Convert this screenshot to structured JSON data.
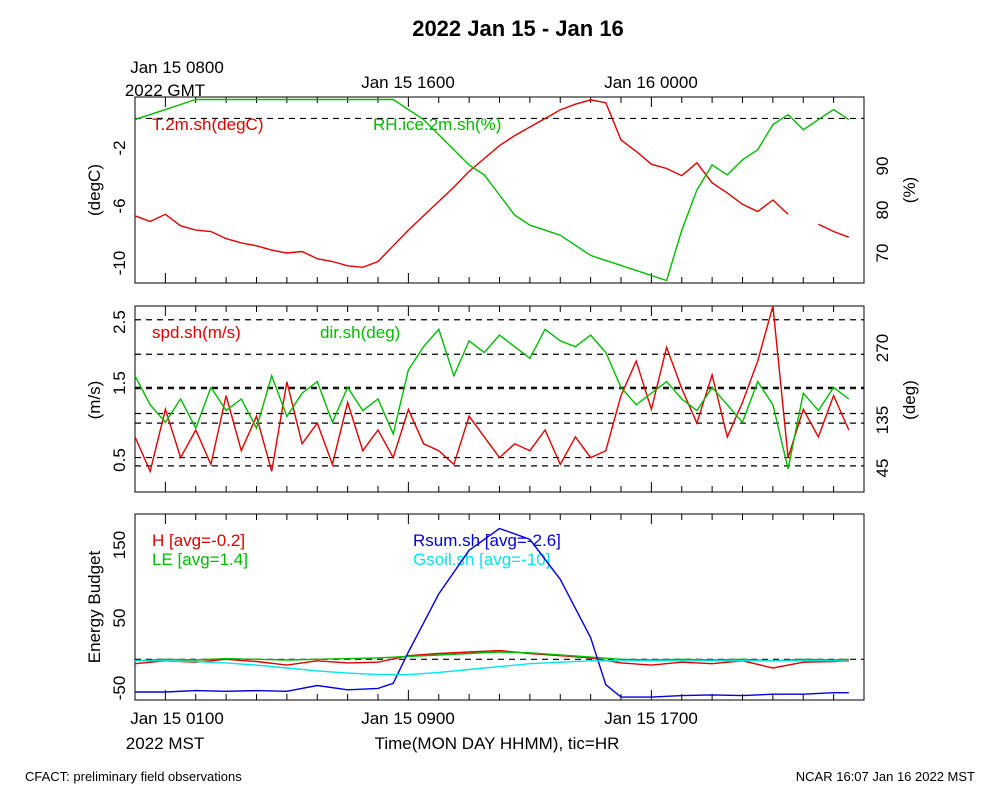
{
  "chart_data": [
    {
      "type": "line",
      "title": "2022 Jan 15 - Jan 16",
      "top_axis": {
        "tick_labels": [
          "Jan 15 0800",
          "Jan 15 1600",
          "Jan 16 0000"
        ],
        "tz_label": "2022 GMT"
      },
      "ylabel_left": "(degC)",
      "ylabel_right": "(%)",
      "yticks_left": [
        "-2",
        "-6",
        "-10"
      ],
      "yticks_right": [
        "90",
        "80",
        "70"
      ],
      "ylim_left": [
        -11.5,
        1.5
      ],
      "ylim_right": [
        63.5,
        100.5
      ],
      "series": [
        {
          "name": "T.2m.sh(degC)",
          "color": "#e00000",
          "axis": "left",
          "x": [
            0,
            0.5,
            1,
            1.5,
            2,
            2.5,
            3,
            3.5,
            4,
            4.5,
            5,
            5.5,
            6,
            6.5,
            7,
            7.5,
            8,
            8.5,
            9,
            9.5,
            10,
            10.5,
            11,
            11.5,
            12,
            12.5,
            13,
            13.5,
            14,
            14.5,
            15,
            15.5,
            16,
            16.5,
            17,
            17.5,
            18,
            18.5,
            19,
            19.5,
            20,
            20.5,
            21,
            21.5,
            22,
            22.5,
            23,
            23.5
          ],
          "y": [
            -6.8,
            -7.2,
            -6.7,
            -7.5,
            -7.8,
            -7.9,
            -8.4,
            -8.7,
            -8.9,
            -9.2,
            -9.4,
            -9.3,
            -9.8,
            -10.0,
            -10.3,
            -10.4,
            -10.0,
            -8.9,
            -7.8,
            -6.8,
            -5.8,
            -4.8,
            -3.7,
            -2.8,
            -1.9,
            -1.2,
            -0.6,
            0.0,
            0.6,
            1.0,
            1.3,
            1.1,
            -1.5,
            -2.3,
            -3.2,
            -3.5,
            -4.0,
            -3.1,
            -4.5,
            -5.2,
            -6.0,
            -6.5,
            -5.7,
            -6.7,
            null,
            -7.4,
            -7.9,
            -8.3
          ]
        },
        {
          "name": "RH.ice.2m.sh(%)",
          "color": "#00bb00",
          "axis": "right",
          "x": [
            0,
            0.5,
            1,
            1.5,
            2,
            2.5,
            3,
            3.5,
            4,
            4.5,
            5,
            5.5,
            6,
            6.5,
            7,
            7.5,
            8,
            8.5,
            9,
            9.5,
            10,
            10.5,
            11,
            11.5,
            12,
            12.5,
            13,
            13.5,
            14,
            14.5,
            15,
            15.5,
            16,
            16.5,
            17,
            17.5,
            18,
            18.5,
            19,
            19.5,
            20,
            20.5,
            21,
            21.5,
            22,
            22.5,
            23,
            23.5
          ],
          "y": [
            96,
            97,
            98,
            99,
            100,
            100,
            100,
            100,
            100,
            100,
            100,
            100,
            100,
            100,
            100,
            100,
            100,
            100,
            98,
            96,
            93,
            90,
            87,
            85,
            81,
            77,
            75,
            74,
            73,
            71,
            69,
            68,
            67,
            66,
            65,
            64,
            74,
            82,
            87,
            85,
            88,
            90,
            95,
            97,
            94,
            96,
            98,
            96
          ]
        }
      ]
    },
    {
      "type": "line",
      "ylabel_left": "(m/s)",
      "ylabel_right": "(deg)",
      "yticks_left": [
        "2.5",
        "1.5",
        "0.5"
      ],
      "yticks_right": [
        "270",
        "135",
        "45"
      ],
      "ylim_left": [
        0.0,
        2.7
      ],
      "ylim_right": [
        0,
        320
      ],
      "series": [
        {
          "name": "spd.sh(m/s)",
          "color": "#e00000",
          "axis": "left",
          "x": [
            0,
            0.5,
            1,
            1.5,
            2,
            2.5,
            3,
            3.5,
            4,
            4.5,
            5,
            5.5,
            6,
            6.5,
            7,
            7.5,
            8,
            8.5,
            9,
            9.5,
            10,
            10.5,
            11,
            11.5,
            12,
            12.5,
            13,
            13.5,
            14,
            14.5,
            15,
            15.5,
            16,
            16.5,
            17,
            17.5,
            18,
            18.5,
            19,
            19.5,
            20,
            20.5,
            21,
            21.5,
            22,
            22.5,
            23,
            23.5
          ],
          "y": [
            0.8,
            0.3,
            1.2,
            0.5,
            0.9,
            0.4,
            1.4,
            0.6,
            1.1,
            0.3,
            1.6,
            0.7,
            1.0,
            0.4,
            1.3,
            0.6,
            0.9,
            0.5,
            1.2,
            0.7,
            0.6,
            0.4,
            1.1,
            0.8,
            0.5,
            0.7,
            0.6,
            0.9,
            0.4,
            0.8,
            0.5,
            0.6,
            1.4,
            1.9,
            1.2,
            2.1,
            1.5,
            1.0,
            1.7,
            0.8,
            1.3,
            1.9,
            2.7,
            0.5,
            1.2,
            0.8,
            1.4,
            0.9
          ]
        },
        {
          "name": "dir.sh(deg)",
          "color": "#00bb00",
          "axis": "right",
          "x": [
            0,
            0.5,
            1,
            1.5,
            2,
            2.5,
            3,
            3.5,
            4,
            4.5,
            5,
            5.5,
            6,
            6.5,
            7,
            7.5,
            8,
            8.5,
            9,
            9.5,
            10,
            10.5,
            11,
            11.5,
            12,
            12.5,
            13,
            13.5,
            14,
            14.5,
            15,
            15.5,
            16,
            16.5,
            17,
            17.5,
            18,
            18.5,
            19,
            19.5,
            20,
            20.5,
            21,
            21.5,
            22,
            22.5,
            23,
            23.5
          ],
          "y": [
            200,
            150,
            120,
            160,
            110,
            180,
            140,
            160,
            110,
            200,
            130,
            170,
            190,
            120,
            180,
            140,
            160,
            100,
            210,
            250,
            280,
            200,
            260,
            240,
            270,
            250,
            230,
            280,
            260,
            250,
            270,
            240,
            180,
            150,
            170,
            190,
            160,
            140,
            180,
            150,
            120,
            190,
            150,
            40,
            170,
            140,
            180,
            160
          ]
        }
      ]
    },
    {
      "type": "line",
      "ylabel_left": "Energy Budget",
      "yticks_left": [
        "150",
        "50",
        "-50"
      ],
      "ylim_left": [
        -56,
        200
      ],
      "x_axis": {
        "tick_labels": [
          "Jan 15 0100",
          "Jan 15 0900",
          "Jan 15 1700"
        ],
        "tz_label": "2022 MST",
        "xlabel": "Time(MON DAY HHMM), tic=HR"
      },
      "series": [
        {
          "name": "H [avg=-0.2]",
          "color": "#e00000",
          "x": [
            0,
            1,
            2,
            3,
            4,
            5,
            6,
            7,
            8,
            9,
            10,
            11,
            12,
            13,
            14,
            15,
            16,
            17,
            18,
            19,
            20,
            21,
            22,
            23,
            23.5
          ],
          "y": [
            -6,
            -2,
            -4,
            0,
            -3,
            -8,
            -2,
            -5,
            -4,
            5,
            8,
            10,
            12,
            8,
            5,
            2,
            -5,
            -8,
            -4,
            -6,
            -2,
            -12,
            -4,
            -3,
            -2
          ]
        },
        {
          "name": "LE [avg=1.4]",
          "color": "#00bb00",
          "x": [
            0,
            1,
            2,
            3,
            4,
            5,
            6,
            7,
            8,
            9,
            10,
            11,
            12,
            13,
            14,
            15,
            16,
            17,
            18,
            19,
            20,
            21,
            22,
            23,
            23.5
          ],
          "y": [
            -2,
            0,
            -1,
            1,
            0,
            -1,
            0,
            1,
            2,
            4,
            6,
            8,
            10,
            9,
            6,
            3,
            0,
            -1,
            0,
            -1,
            0,
            -2,
            0,
            -1,
            0
          ]
        },
        {
          "name": "Rsum.sh [avg=-2.6]",
          "color": "#0000dd",
          "x": [
            0,
            1,
            2,
            3,
            4,
            5,
            6,
            7,
            8,
            8.5,
            9,
            10,
            11,
            12,
            13,
            14,
            15,
            15.5,
            16,
            17,
            18,
            19,
            20,
            21,
            22,
            23,
            23.5
          ],
          "y": [
            -45,
            -45,
            -43,
            -44,
            -43,
            -44,
            -36,
            -42,
            -40,
            -33,
            10,
            90,
            150,
            180,
            165,
            110,
            30,
            -35,
            -52,
            -52,
            -50,
            -49,
            -50,
            -48,
            -48,
            -46,
            -46
          ]
        },
        {
          "name": "Gsoil.sh [avg=-10]",
          "color": "#00e5ee",
          "x": [
            0,
            1,
            2,
            3,
            4,
            5,
            6,
            7,
            8,
            9,
            10,
            11,
            12,
            13,
            14,
            15,
            16,
            17,
            18,
            19,
            20,
            21,
            22,
            23,
            23.5
          ],
          "y": [
            -2,
            -2,
            -3,
            -5,
            -8,
            -12,
            -16,
            -19,
            -21,
            -21,
            -18,
            -14,
            -10,
            -6,
            -4,
            -2,
            -2,
            -2,
            -2,
            -2,
            -2,
            -2,
            -2,
            -2,
            -3
          ]
        }
      ]
    }
  ],
  "footer": {
    "left": "CFACT: preliminary field observations",
    "right": "NCAR 16:07 Jan 16 2022 MST"
  }
}
